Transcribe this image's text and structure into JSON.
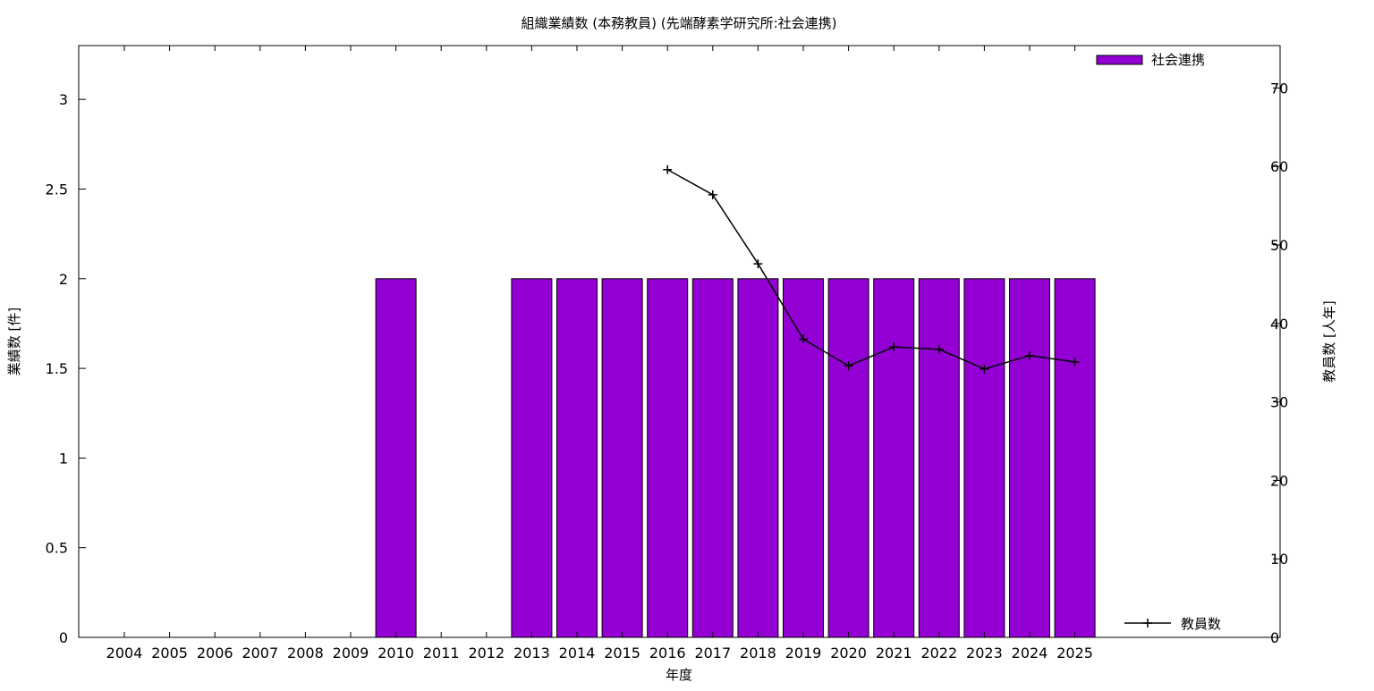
{
  "chart_data": {
    "type": "bar",
    "title": "組織業績数 (本務教員) (先端酵素学研究所:社会連携)",
    "xlabel": "年度",
    "ylabel": "業績数 [件]",
    "y2label": "教員数 [人年]",
    "categories": [
      "2004",
      "2005",
      "2006",
      "2007",
      "2008",
      "2009",
      "2010",
      "2011",
      "2012",
      "2013",
      "2014",
      "2015",
      "2016",
      "2017",
      "2018",
      "2019",
      "2020",
      "2021",
      "2022",
      "2023",
      "2024",
      "2025"
    ],
    "ylim": [
      0,
      3.3
    ],
    "yticks": [
      "0",
      "0.5",
      "1",
      "1.5",
      "2",
      "2.5",
      "3"
    ],
    "y2lim": [
      0,
      75.4
    ],
    "y2ticks": [
      "0",
      "10",
      "20",
      "30",
      "40",
      "50",
      "60",
      "70"
    ],
    "grid": false,
    "legend_position": "top-right",
    "series": [
      {
        "name": "社会連携",
        "kind": "bar",
        "axis": "left",
        "color": "#9400d3",
        "values": [
          0,
          0,
          0,
          0,
          0,
          0,
          2,
          0,
          0,
          2,
          2,
          2,
          2,
          2,
          2,
          2,
          2,
          2,
          2,
          2,
          2,
          2
        ]
      },
      {
        "name": "教員数",
        "kind": "line",
        "axis": "right",
        "color": "#000000",
        "marker": "plus",
        "values": [
          null,
          null,
          null,
          null,
          null,
          null,
          null,
          null,
          null,
          null,
          null,
          null,
          59.6,
          56.4,
          47.6,
          38.0,
          34.6,
          37.0,
          36.7,
          34.2,
          35.9,
          35.1
        ]
      }
    ]
  }
}
